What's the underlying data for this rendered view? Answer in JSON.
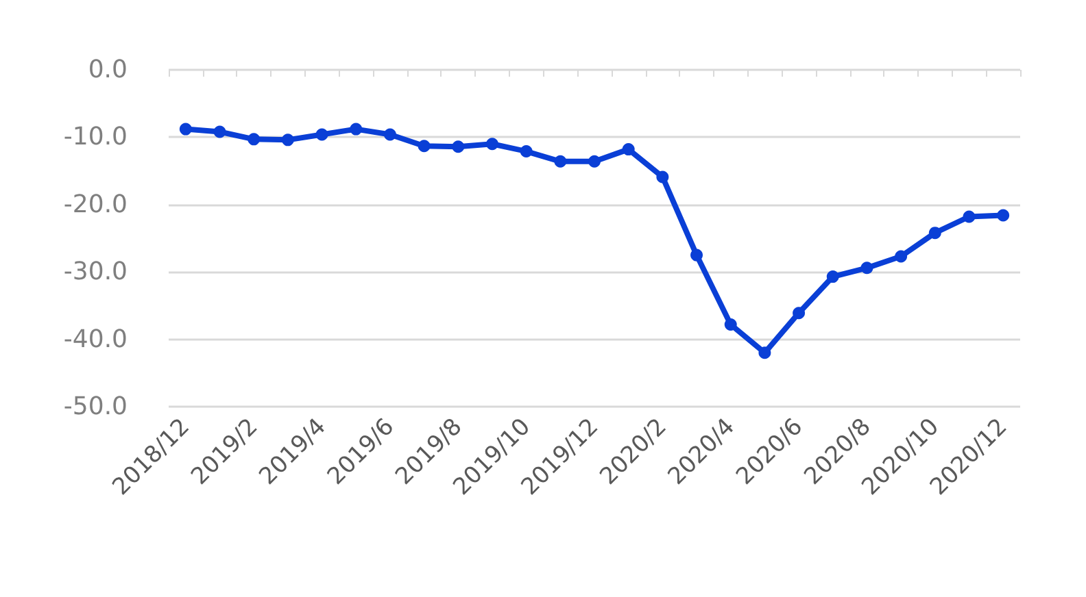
{
  "chart_data": {
    "type": "line",
    "categories": [
      "2018/12",
      null,
      "2019/2",
      null,
      "2019/4",
      null,
      "2019/6",
      null,
      "2019/8",
      null,
      "2019/10",
      null,
      "2019/12",
      null,
      "2020/2",
      null,
      "2020/4",
      null,
      "2020/6",
      null,
      "2020/8",
      null,
      "2020/10",
      null,
      "2020/12"
    ],
    "series": [
      {
        "color": "#0a3fd6",
        "values": [
          -8.8,
          -9.2,
          -10.3,
          -10.4,
          -9.6,
          -8.8,
          -9.6,
          -11.3,
          -11.4,
          -11.0,
          -12.1,
          -13.6,
          -13.6,
          -11.8,
          -15.9,
          -27.5,
          -37.8,
          -42.0,
          -36.1,
          -30.7,
          -29.4,
          -27.7,
          -24.2,
          -21.8,
          -21.6
        ]
      }
    ],
    "ylim": [
      -50,
      0
    ],
    "yticks": [
      {
        "value": 0,
        "label": "0.0"
      },
      {
        "value": -10,
        "label": "-10.0"
      },
      {
        "value": -20,
        "label": "-20.0"
      },
      {
        "value": -30,
        "label": "-30.0"
      },
      {
        "value": -40,
        "label": "-40.0"
      },
      {
        "value": -50,
        "label": "-50.0"
      }
    ],
    "grid": "y",
    "marker": "circle",
    "line_style": "solid"
  }
}
